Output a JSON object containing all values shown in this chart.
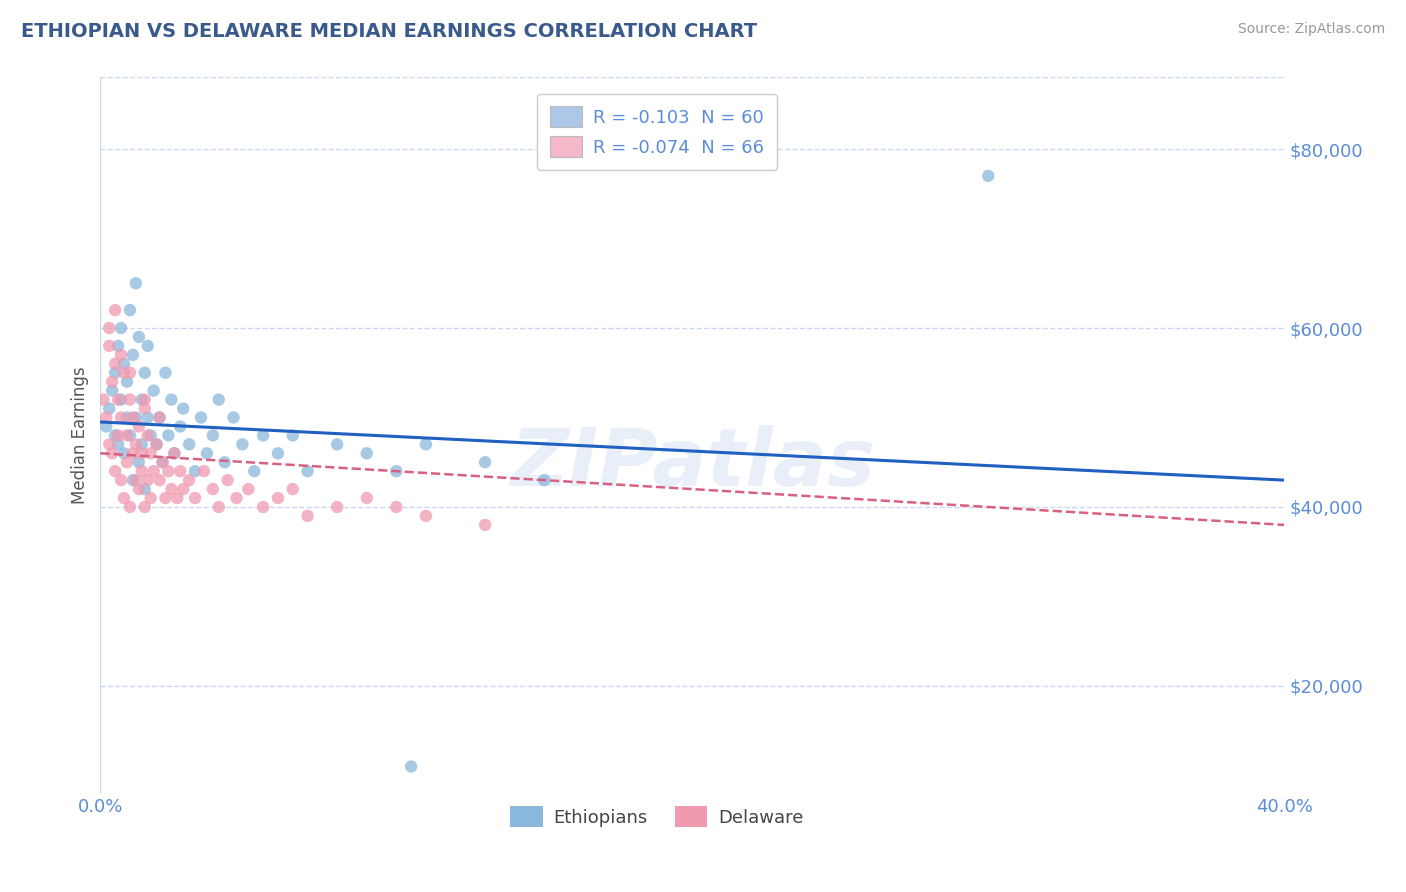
{
  "title": "ETHIOPIAN VS DELAWARE MEDIAN EARNINGS CORRELATION CHART",
  "source": "Source: ZipAtlas.com",
  "ylabel": "Median Earnings",
  "ytick_labels": [
    "$20,000",
    "$40,000",
    "$60,000",
    "$80,000"
  ],
  "ytick_values": [
    20000,
    40000,
    60000,
    80000
  ],
  "ylim": [
    8000,
    88000
  ],
  "xlim": [
    0.0,
    0.4
  ],
  "legend_entries": [
    {
      "label": "R = -0.103  N = 60",
      "color": "#aec6e8"
    },
    {
      "label": "R = -0.074  N = 66",
      "color": "#f4b8c8"
    }
  ],
  "legend_bottom": [
    "Ethiopians",
    "Delaware"
  ],
  "title_color": "#3a5a8c",
  "axis_color": "#5b8dd9",
  "grid_color": "#c8d8f0",
  "watermark": "ZIPatlas",
  "blue_color": "#8ab8dc",
  "pink_color": "#f09ab0",
  "trend_blue": "#2060c0",
  "trend_pink": "#d86080",
  "eth_x": [
    0.002,
    0.003,
    0.004,
    0.005,
    0.005,
    0.006,
    0.006,
    0.007,
    0.007,
    0.008,
    0.008,
    0.009,
    0.009,
    0.01,
    0.01,
    0.011,
    0.011,
    0.012,
    0.012,
    0.013,
    0.013,
    0.014,
    0.014,
    0.015,
    0.015,
    0.016,
    0.016,
    0.017,
    0.018,
    0.019,
    0.02,
    0.021,
    0.022,
    0.023,
    0.024,
    0.025,
    0.027,
    0.028,
    0.03,
    0.032,
    0.034,
    0.036,
    0.038,
    0.04,
    0.042,
    0.045,
    0.048,
    0.052,
    0.055,
    0.06,
    0.065,
    0.07,
    0.08,
    0.09,
    0.1,
    0.11,
    0.13,
    0.15,
    0.105,
    0.3
  ],
  "eth_y": [
    49000,
    51000,
    53000,
    48000,
    55000,
    47000,
    58000,
    52000,
    60000,
    56000,
    46000,
    54000,
    50000,
    62000,
    48000,
    57000,
    43000,
    65000,
    50000,
    59000,
    45000,
    52000,
    47000,
    55000,
    42000,
    50000,
    58000,
    48000,
    53000,
    47000,
    50000,
    45000,
    55000,
    48000,
    52000,
    46000,
    49000,
    51000,
    47000,
    44000,
    50000,
    46000,
    48000,
    52000,
    45000,
    50000,
    47000,
    44000,
    48000,
    46000,
    48000,
    44000,
    47000,
    46000,
    44000,
    47000,
    45000,
    43000,
    11000,
    77000
  ],
  "del_x": [
    0.001,
    0.002,
    0.003,
    0.003,
    0.004,
    0.004,
    0.005,
    0.005,
    0.006,
    0.006,
    0.007,
    0.007,
    0.008,
    0.008,
    0.009,
    0.009,
    0.01,
    0.01,
    0.011,
    0.011,
    0.012,
    0.012,
    0.013,
    0.013,
    0.014,
    0.014,
    0.015,
    0.015,
    0.016,
    0.016,
    0.017,
    0.017,
    0.018,
    0.019,
    0.02,
    0.021,
    0.022,
    0.023,
    0.024,
    0.025,
    0.026,
    0.027,
    0.028,
    0.03,
    0.032,
    0.035,
    0.038,
    0.04,
    0.043,
    0.046,
    0.05,
    0.055,
    0.06,
    0.065,
    0.07,
    0.08,
    0.09,
    0.1,
    0.11,
    0.13,
    0.003,
    0.005,
    0.007,
    0.01,
    0.015,
    0.02
  ],
  "del_y": [
    52000,
    50000,
    58000,
    47000,
    54000,
    46000,
    56000,
    44000,
    52000,
    48000,
    50000,
    43000,
    55000,
    41000,
    48000,
    45000,
    52000,
    40000,
    50000,
    46000,
    47000,
    43000,
    49000,
    42000,
    46000,
    44000,
    51000,
    40000,
    48000,
    43000,
    46000,
    41000,
    44000,
    47000,
    43000,
    45000,
    41000,
    44000,
    42000,
    46000,
    41000,
    44000,
    42000,
    43000,
    41000,
    44000,
    42000,
    40000,
    43000,
    41000,
    42000,
    40000,
    41000,
    42000,
    39000,
    40000,
    41000,
    40000,
    39000,
    38000,
    60000,
    62000,
    57000,
    55000,
    52000,
    50000
  ]
}
